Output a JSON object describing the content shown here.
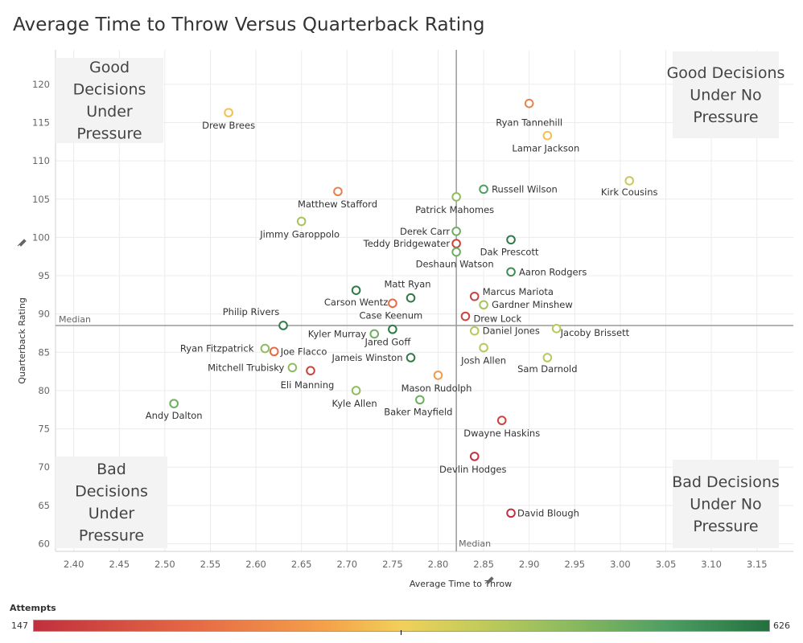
{
  "title": "Average Time to Throw Versus Quarterback Rating",
  "chart_data": {
    "type": "scatter",
    "title": "Average Time to Throw Versus Quarterback Rating",
    "xlabel": "Average Time to Throw",
    "ylabel": "Quarterback Rating",
    "xlim": [
      2.38,
      3.19
    ],
    "ylim": [
      59,
      124.5
    ],
    "xticks": [
      "2.40",
      "2.45",
      "2.50",
      "2.55",
      "2.60",
      "2.65",
      "2.70",
      "2.75",
      "2.80",
      "2.85",
      "2.90",
      "2.95",
      "3.00",
      "3.05",
      "3.10",
      "3.15"
    ],
    "yticks": [
      "60",
      "65",
      "70",
      "75",
      "80",
      "85",
      "90",
      "95",
      "100",
      "105",
      "110",
      "115",
      "120"
    ],
    "grid": true,
    "median_x": 2.82,
    "median_y": 88.5,
    "median_label": "Median",
    "quadrants": {
      "top_left": "Good Decisions Under Pressure",
      "top_right": "Good Decisions Under No Pressure",
      "bottom_left": "Bad Decisions Under Pressure",
      "bottom_right": "Bad Decisions Under No Pressure"
    },
    "color_legend": {
      "title": "Attempts",
      "min": 147,
      "max": 626,
      "colors": [
        "#c0303d",
        "#e66a45",
        "#f5a24a",
        "#f1d05a",
        "#c5cc5a",
        "#8fbc5e",
        "#4f9e63",
        "#23703f"
      ]
    },
    "points": [
      {
        "name": "Drew Brees",
        "x": 2.57,
        "y": 116.3,
        "color": "#f2c14e"
      },
      {
        "name": "Ryan Tannehill",
        "x": 2.9,
        "y": 117.5,
        "color": "#e8824a"
      },
      {
        "name": "Lamar Jackson",
        "x": 2.92,
        "y": 113.3,
        "color": "#f2c14e"
      },
      {
        "name": "Kirk Cousins",
        "x": 3.01,
        "y": 107.4,
        "color": "#c8c95a"
      },
      {
        "name": "Matthew Stafford",
        "x": 2.69,
        "y": 106.0,
        "color": "#e8824a"
      },
      {
        "name": "Russell Wilson",
        "x": 2.85,
        "y": 106.3,
        "color": "#4f9e63"
      },
      {
        "name": "Patrick Mahomes",
        "x": 2.82,
        "y": 105.3,
        "color": "#8fbc5e"
      },
      {
        "name": "Jimmy Garoppolo",
        "x": 2.65,
        "y": 102.1,
        "color": "#a6c45c"
      },
      {
        "name": "Derek Carr",
        "x": 2.82,
        "y": 100.8,
        "color": "#6fae60"
      },
      {
        "name": "Dak Prescott",
        "x": 2.88,
        "y": 99.7,
        "color": "#2f7a45"
      },
      {
        "name": "Teddy Bridgewater",
        "x": 2.82,
        "y": 99.2,
        "color": "#c8443f"
      },
      {
        "name": "Deshaun Watson",
        "x": 2.82,
        "y": 98.1,
        "color": "#6fae60"
      },
      {
        "name": "Aaron Rodgers",
        "x": 2.88,
        "y": 95.5,
        "color": "#3f8c55"
      },
      {
        "name": "Carson Wentz",
        "x": 2.71,
        "y": 93.1,
        "color": "#2f7a45"
      },
      {
        "name": "Matt Ryan",
        "x": 2.77,
        "y": 92.1,
        "color": "#2f7a45"
      },
      {
        "name": "Marcus Mariota",
        "x": 2.84,
        "y": 92.3,
        "color": "#c8443f"
      },
      {
        "name": "Case Keenum",
        "x": 2.75,
        "y": 91.4,
        "color": "#e66a45"
      },
      {
        "name": "Gardner Minshew",
        "x": 2.85,
        "y": 91.2,
        "color": "#a6c45c"
      },
      {
        "name": "Drew Lock",
        "x": 2.83,
        "y": 89.7,
        "color": "#c8443f"
      },
      {
        "name": "Philip Rivers",
        "x": 2.63,
        "y": 88.5,
        "color": "#2f7a45"
      },
      {
        "name": "Kyler Murray",
        "x": 2.73,
        "y": 87.4,
        "color": "#6fae60"
      },
      {
        "name": "Jared Goff",
        "x": 2.75,
        "y": 88.0,
        "color": "#2f7a45"
      },
      {
        "name": "Daniel Jones",
        "x": 2.84,
        "y": 87.8,
        "color": "#b9c85b"
      },
      {
        "name": "Jacoby Brissett",
        "x": 2.93,
        "y": 88.1,
        "color": "#b9c85b"
      },
      {
        "name": "Ryan Fitzpatrick",
        "x": 2.61,
        "y": 85.5,
        "color": "#8fbc5e"
      },
      {
        "name": "Joe Flacco",
        "x": 2.62,
        "y": 85.1,
        "color": "#e66a45"
      },
      {
        "name": "Jameis Winston",
        "x": 2.77,
        "y": 84.3,
        "color": "#2f7a45"
      },
      {
        "name": "Josh Allen",
        "x": 2.85,
        "y": 85.6,
        "color": "#b9c85b"
      },
      {
        "name": "Sam Darnold",
        "x": 2.92,
        "y": 84.3,
        "color": "#b9c85b"
      },
      {
        "name": "Mitchell Trubisky",
        "x": 2.64,
        "y": 83.0,
        "color": "#8fbc5e"
      },
      {
        "name": "Eli Manning",
        "x": 2.66,
        "y": 82.6,
        "color": "#c8443f"
      },
      {
        "name": "Mason Rudolph",
        "x": 2.8,
        "y": 82.0,
        "color": "#f09a4a"
      },
      {
        "name": "Kyle Allen",
        "x": 2.71,
        "y": 80.0,
        "color": "#8fbc5e"
      },
      {
        "name": "Baker Mayfield",
        "x": 2.78,
        "y": 78.8,
        "color": "#6fae60"
      },
      {
        "name": "Andy Dalton",
        "x": 2.51,
        "y": 78.3,
        "color": "#6fae60"
      },
      {
        "name": "Dwayne Haskins",
        "x": 2.87,
        "y": 76.1,
        "color": "#c8443f"
      },
      {
        "name": "Devlin Hodges",
        "x": 2.84,
        "y": 71.4,
        "color": "#c0303d"
      },
      {
        "name": "David Blough",
        "x": 2.88,
        "y": 64.0,
        "color": "#c0303d"
      }
    ]
  }
}
